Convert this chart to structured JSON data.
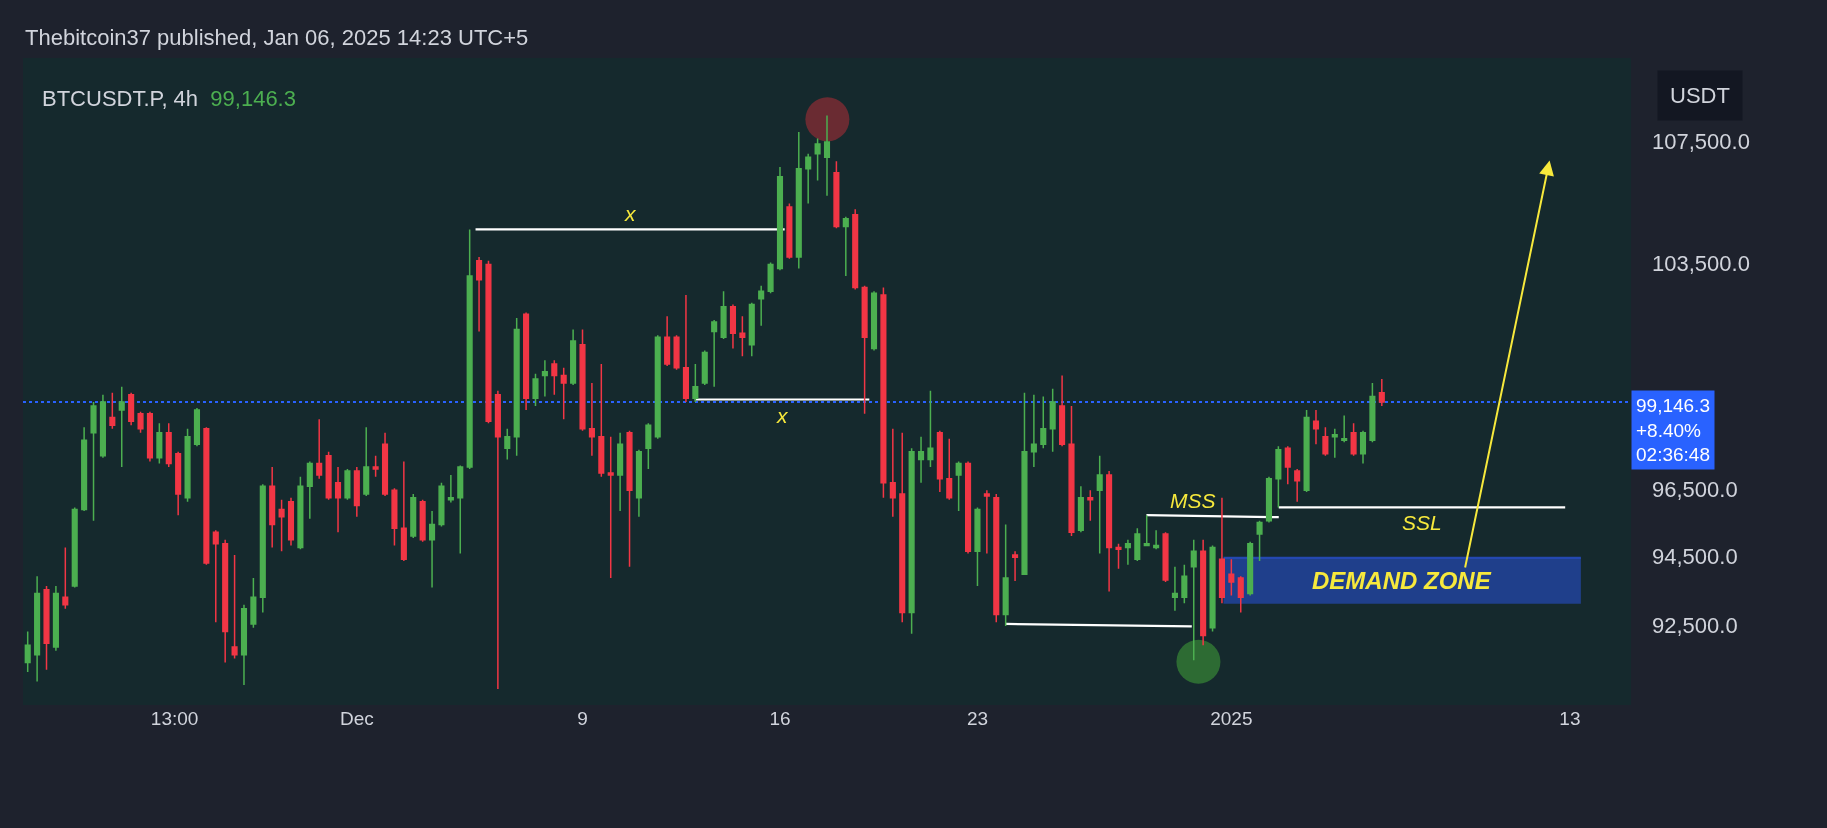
{
  "chart_data": {
    "type": "candlestick",
    "title": "BTCUSDT.P, 4h",
    "subtitle": "99,146.3",
    "ylabel": "USDT",
    "log": true,
    "annotations": [
      "Thebitcoin37 published, Jan 06, 2025 14:23 UTC+5"
    ],
    "xlim": [
      "2024-11-19T04:00",
      "2025-01-15T04:00"
    ],
    "xticks": [
      {
        "value": "2024-11-24T13:00",
        "label": "13:00"
      },
      {
        "value": "2024-12-01",
        "label": "Dec"
      },
      {
        "value": "2024-12-09",
        "label": "9"
      },
      {
        "value": "2024-12-16",
        "label": "16"
      },
      {
        "value": "2024-12-23",
        "label": "23"
      },
      {
        "value": "2025-01-01",
        "label": "2025"
      },
      {
        "value": "2025-01-13",
        "label": "13"
      }
    ],
    "ylim": [
      90240,
      110320
    ],
    "yticks": [
      {
        "value": 92500,
        "label": "92,500.0"
      },
      {
        "value": 94500,
        "label": "94,500.0"
      },
      {
        "value": 96500,
        "label": "96,500.0"
      },
      {
        "value": 103500,
        "label": "103,500.0"
      },
      {
        "value": 107500,
        "label": "107,500.0"
      }
    ],
    "ref_lines": [
      {
        "axis": "y",
        "value": 99146.3,
        "label": "99,146.3\n+8.40%\n02:36:48",
        "color": "#2962ff",
        "line_style": "dotted"
      }
    ],
    "series": [
      {
        "type": "line",
        "name": "x",
        "color": "#ffffff",
        "x": [
          "2024-12-05T05:00",
          "2024-12-16T04:00"
        ],
        "values": [
          104600,
          104600
        ]
      },
      {
        "type": "line",
        "name": "x",
        "color": "#ffffff",
        "x": [
          "2024-12-12T23:30",
          "2024-12-19T04:00"
        ],
        "values": [
          99220,
          99220
        ]
      },
      {
        "type": "line",
        "color": "#ffffff",
        "x": [
          "2024-12-24T00:15",
          "2024-12-30T14:20"
        ],
        "values": [
          92540,
          92470
        ]
      },
      {
        "type": "line",
        "name": "MSS",
        "color": "#ffffff",
        "x": [
          "2024-12-28T23:45",
          "2025-01-02T16:20"
        ],
        "values": [
          95720,
          95660
        ]
      },
      {
        "type": "line",
        "name": "SSL",
        "color": "#ffffff",
        "x": [
          "2025-01-02T16:20",
          "2025-01-12T20:00"
        ],
        "values": [
          95950,
          95950
        ]
      },
      {
        "type": "line",
        "name": "DEMAND ZONE",
        "color": "#2448b0",
        "x": [
          "2024-12-31T17:20",
          "2025-01-13T09:20"
        ],
        "values": [
          94460,
          94460
        ],
        "lower": [
          93120,
          93120
        ],
        "upper": [
          94460,
          94460
        ]
      },
      {
        "type": "scatter",
        "color": "#6a2b32",
        "x": [
          "2024-12-17T16:20"
        ],
        "values": [
          108240
        ]
      },
      {
        "type": "scatter",
        "color": "#2d6b33",
        "x": [
          "2024-12-30T20:00"
        ],
        "values": [
          91460
        ]
      }
    ],
    "x": [
      "2024-11-19T08:00",
      "2024-11-19T16:00",
      "2024-11-20T00:00",
      "2024-11-20T08:00",
      "2024-11-20T16:00",
      "2024-11-21T00:00",
      "2024-11-21T08:00",
      "2024-11-21T16:00",
      "2024-11-22T00:00",
      "2024-11-22T08:00",
      "2024-11-22T16:00",
      "2024-11-23T00:00",
      "2024-11-23T08:00",
      "2024-11-23T16:00",
      "2024-11-24T00:00",
      "2024-11-24T08:00",
      "2024-11-24T16:00",
      "2024-11-25T00:00",
      "2024-11-25T08:00",
      "2024-11-25T16:00",
      "2024-11-26T00:00",
      "2024-11-26T08:00",
      "2024-11-26T16:00",
      "2024-11-27T00:00",
      "2024-11-27T08:00",
      "2024-11-27T16:00",
      "2024-11-28T00:00",
      "2024-11-28T08:00",
      "2024-11-28T16:00",
      "2024-11-29T00:00",
      "2024-11-29T08:00",
      "2024-11-29T16:00",
      "2024-11-30T00:00",
      "2024-11-30T08:00",
      "2024-11-30T16:00",
      "2024-12-01T00:00",
      "2024-12-01T08:00",
      "2024-12-01T16:00",
      "2024-12-02T00:00",
      "2024-12-02T08:00",
      "2024-12-02T16:00",
      "2024-12-03T00:00",
      "2024-12-03T08:00",
      "2024-12-03T16:00",
      "2024-12-04T00:00",
      "2024-12-04T08:00",
      "2024-12-04T16:00",
      "2024-12-05T00:00",
      "2024-12-05T08:00",
      "2024-12-05T16:00",
      "2024-12-06T00:00",
      "2024-12-06T08:00",
      "2024-12-06T16:00",
      "2024-12-07T00:00",
      "2024-12-07T08:00",
      "2024-12-07T16:00",
      "2024-12-08T00:00",
      "2024-12-08T08:00",
      "2024-12-08T16:00",
      "2024-12-09T00:00",
      "2024-12-09T08:00",
      "2024-12-09T16:00",
      "2024-12-10T00:00",
      "2024-12-10T08:00",
      "2024-12-10T16:00",
      "2024-12-11T00:00",
      "2024-12-11T08:00",
      "2024-12-11T16:00",
      "2024-12-12T00:00",
      "2024-12-12T08:00",
      "2024-12-12T16:00",
      "2024-12-13T00:00",
      "2024-12-13T08:00",
      "2024-12-13T16:00",
      "2024-12-14T00:00",
      "2024-12-14T08:00",
      "2024-12-14T16:00",
      "2024-12-15T00:00",
      "2024-12-15T08:00",
      "2024-12-15T16:00",
      "2024-12-16T00:00",
      "2024-12-16T08:00",
      "2024-12-16T16:00",
      "2024-12-17T00:00",
      "2024-12-17T08:00",
      "2024-12-17T16:00",
      "2024-12-18T00:00",
      "2024-12-18T08:00",
      "2024-12-18T16:00",
      "2024-12-19T00:00",
      "2024-12-19T08:00",
      "2024-12-19T16:00",
      "2024-12-20T00:00",
      "2024-12-20T08:00",
      "2024-12-20T16:00",
      "2024-12-21T00:00",
      "2024-12-21T08:00",
      "2024-12-21T16:00",
      "2024-12-22T00:00",
      "2024-12-22T08:00",
      "2024-12-22T16:00",
      "2024-12-23T00:00",
      "2024-12-23T08:00",
      "2024-12-23T16:00",
      "2024-12-24T00:00",
      "2024-12-24T08:00",
      "2024-12-24T16:00",
      "2024-12-25T00:00",
      "2024-12-25T08:00",
      "2024-12-25T16:00",
      "2024-12-26T00:00",
      "2024-12-26T08:00",
      "2024-12-26T16:00",
      "2024-12-27T00:00",
      "2024-12-27T08:00",
      "2024-12-27T16:00",
      "2024-12-28T00:00",
      "2024-12-28T08:00",
      "2024-12-28T16:00",
      "2024-12-29T00:00",
      "2024-12-29T08:00",
      "2024-12-29T16:00",
      "2024-12-30T00:00",
      "2024-12-30T08:00",
      "2024-12-30T16:00",
      "2024-12-31T00:00",
      "2024-12-31T08:00",
      "2024-12-31T16:00",
      "2025-01-01T00:00",
      "2025-01-01T08:00",
      "2025-01-01T16:00",
      "2025-01-02T00:00",
      "2025-01-02T08:00",
      "2025-01-02T16:00",
      "2025-01-03T00:00",
      "2025-01-03T08:00",
      "2025-01-03T16:00",
      "2025-01-04T00:00",
      "2025-01-04T08:00",
      "2025-01-04T16:00",
      "2025-01-05T00:00",
      "2025-01-05T08:00",
      "2025-01-05T16:00",
      "2025-01-06T00:00",
      "2025-01-06T08:00"
    ],
    "ohlc": [
      [
        91440,
        92320,
        91170,
        91930
      ],
      [
        91660,
        93920,
        90900,
        93420
      ],
      [
        93530,
        93640,
        91230,
        91990
      ],
      [
        91880,
        93640,
        91770,
        93420
      ],
      [
        93310,
        94760,
        92980,
        93090
      ],
      [
        93640,
        95950,
        93590,
        95890
      ],
      [
        95890,
        98370,
        95840,
        97970
      ],
      [
        98200,
        99140,
        95550,
        99020
      ],
      [
        97500,
        99370,
        97440,
        99140
      ],
      [
        98670,
        99430,
        98320,
        98430
      ],
      [
        98900,
        99610,
        97160,
        99140
      ],
      [
        99370,
        99430,
        98430,
        98550
      ],
      [
        98780,
        98840,
        98200,
        98320
      ],
      [
        98780,
        98840,
        97330,
        97440
      ],
      [
        97440,
        98490,
        97270,
        98200
      ],
      [
        98200,
        98490,
        97160,
        97270
      ],
      [
        97560,
        97620,
        95720,
        96350
      ],
      [
        96240,
        98320,
        96120,
        98080
      ],
      [
        97850,
        98960,
        97790,
        98900
      ],
      [
        98320,
        98370,
        94260,
        94310
      ],
      [
        95210,
        95270,
        92590,
        94870
      ],
      [
        94870,
        94990,
        91440,
        92320
      ],
      [
        91880,
        94540,
        91550,
        91660
      ],
      [
        91660,
        93090,
        90800,
        92980
      ],
      [
        92540,
        93870,
        92430,
        93310
      ],
      [
        93310,
        96640,
        92870,
        96580
      ],
      [
        96580,
        97160,
        94760,
        95440
      ],
      [
        95890,
        96180,
        94650,
        95670
      ],
      [
        96120,
        96240,
        94820,
        94990
      ],
      [
        94760,
        96870,
        94710,
        96580
      ],
      [
        96580,
        97330,
        95610,
        97270
      ],
      [
        97270,
        98610,
        96810,
        96920
      ],
      [
        97500,
        97620,
        96180,
        96240
      ],
      [
        96690,
        97160,
        95210,
        96240
      ],
      [
        96240,
        97100,
        96180,
        97040
      ],
      [
        97040,
        97160,
        95670,
        96010
      ],
      [
        96350,
        98370,
        96290,
        97160
      ],
      [
        97160,
        97500,
        96870,
        97100
      ],
      [
        97850,
        98200,
        96290,
        96350
      ],
      [
        96460,
        96520,
        94820,
        95330
      ],
      [
        95330,
        97330,
        94370,
        94420
      ],
      [
        95100,
        96350,
        95040,
        96240
      ],
      [
        96120,
        96180,
        94930,
        94990
      ],
      [
        94990,
        95840,
        93590,
        95440
      ],
      [
        95440,
        96690,
        95380,
        96580
      ],
      [
        96180,
        96920,
        96100,
        96240
      ],
      [
        96240,
        97210,
        94590,
        97160
      ],
      [
        97160,
        104600,
        97100,
        103100
      ],
      [
        103590,
        103710,
        101340,
        102980
      ],
      [
        103470,
        103590,
        98490,
        98550
      ],
      [
        99370,
        99490,
        90690,
        98080
      ],
      [
        97730,
        98320,
        97390,
        98080
      ],
      [
        98080,
        101760,
        97500,
        101400
      ],
      [
        101880,
        101940,
        98900,
        99260
      ],
      [
        99260,
        100020,
        99020,
        99850
      ],
      [
        99960,
        100440,
        99310,
        100080
      ],
      [
        100320,
        100440,
        99370,
        99960
      ],
      [
        99960,
        100200,
        98610,
        99730
      ],
      [
        99730,
        101400,
        99670,
        101040
      ],
      [
        100920,
        101400,
        98260,
        98320
      ],
      [
        98320,
        99730,
        97500,
        98080
      ],
      [
        98080,
        100320,
        96870,
        96980
      ],
      [
        96980,
        98080,
        93870,
        96920
      ],
      [
        96920,
        98200,
        95840,
        97850
      ],
      [
        98200,
        98260,
        94200,
        96460
      ],
      [
        96240,
        97680,
        95670,
        97620
      ],
      [
        97730,
        98490,
        97100,
        98430
      ],
      [
        98080,
        101220,
        98020,
        101160
      ],
      [
        101160,
        101820,
        100260,
        100320
      ],
      [
        101160,
        101220,
        100140,
        100200
      ],
      [
        100200,
        102490,
        99140,
        99260
      ],
      [
        99260,
        100320,
        99140,
        99610
      ],
      [
        99730,
        100740,
        99670,
        100680
      ],
      [
        101340,
        101700,
        99610,
        101640
      ],
      [
        101160,
        102610,
        101100,
        102120
      ],
      [
        102120,
        102190,
        100800,
        101280
      ],
      [
        101280,
        101820,
        100560,
        101160
      ],
      [
        100920,
        102250,
        100560,
        102190
      ],
      [
        102370,
        102790,
        101520,
        102610
      ],
      [
        102610,
        103530,
        102550,
        103470
      ],
      [
        103340,
        106650,
        103280,
        106330
      ],
      [
        105330,
        105450,
        103650,
        103710
      ],
      [
        103710,
        107810,
        103340,
        106590
      ],
      [
        106590,
        107090,
        105450,
        106970
      ],
      [
        107090,
        107600,
        106200,
        107410
      ],
      [
        106970,
        108370,
        105700,
        107480
      ],
      [
        106460,
        106840,
        104640,
        104700
      ],
      [
        104700,
        105010,
        103100,
        104950
      ],
      [
        105080,
        105260,
        102670,
        102730
      ],
      [
        102730,
        102790,
        98780,
        101160
      ],
      [
        100800,
        102610,
        100740,
        102550
      ],
      [
        102490,
        102730,
        96240,
        96690
      ],
      [
        96690,
        98320,
        95670,
        96240
      ],
      [
        96350,
        98200,
        92590,
        92870
      ],
      [
        92870,
        97730,
        92260,
        97620
      ],
      [
        97390,
        98080,
        96690,
        97620
      ],
      [
        97390,
        99490,
        97160,
        97730
      ],
      [
        98200,
        98260,
        96410,
        96810
      ],
      [
        96810,
        98020,
        96180,
        96240
      ],
      [
        96920,
        97330,
        95840,
        97270
      ],
      [
        97270,
        97330,
        94590,
        94650
      ],
      [
        94650,
        95950,
        93640,
        95890
      ],
      [
        96350,
        96460,
        94590,
        96290
      ],
      [
        96240,
        96350,
        92590,
        92810
      ],
      [
        92810,
        95440,
        92480,
        93870
      ],
      [
        94540,
        94650,
        93780,
        94480
      ],
      [
        93980,
        99430,
        93980,
        97620
      ],
      [
        97620,
        99370,
        97160,
        97850
      ],
      [
        97850,
        99310,
        97730,
        98320
      ],
      [
        98320,
        99550,
        97620,
        99140
      ],
      [
        99020,
        99960,
        97790,
        97850
      ],
      [
        97850,
        99020,
        95100,
        95210
      ],
      [
        95270,
        96580,
        95210,
        96240
      ],
      [
        96240,
        96460,
        95550,
        96180
      ],
      [
        96460,
        97500,
        94590,
        96920
      ],
      [
        96920,
        97040,
        93480,
        94760
      ],
      [
        94760,
        94870,
        94140,
        94710
      ],
      [
        94760,
        94990,
        94260,
        94870
      ],
      [
        94420,
        95330,
        94370,
        95160
      ],
      [
        94820,
        95720,
        94820,
        94870
      ],
      [
        94760,
        95270,
        94710,
        94820
      ],
      [
        95160,
        95210,
        93750,
        93810
      ],
      [
        93310,
        94200,
        92920,
        93420
      ],
      [
        93310,
        94260,
        93140,
        93920
      ],
      [
        94200,
        94990,
        91500,
        94650
      ],
      [
        94650,
        94990,
        91930,
        92210
      ],
      [
        92430,
        94820,
        92320,
        94760
      ],
      [
        94420,
        96240,
        93140,
        93310
      ],
      [
        93980,
        94420,
        93360,
        93750
      ],
      [
        93870,
        93920,
        92870,
        93310
      ],
      [
        93420,
        94930,
        93360,
        94870
      ],
      [
        95160,
        95550,
        94370,
        95500
      ],
      [
        95550,
        96870,
        95500,
        96810
      ],
      [
        96810,
        97790,
        95950,
        97680
      ],
      [
        97730,
        97790,
        96640,
        97160
      ],
      [
        97040,
        97100,
        96120,
        96750
      ],
      [
        96460,
        98900,
        96410,
        98670
      ],
      [
        98550,
        98900,
        97850,
        98320
      ],
      [
        98080,
        98370,
        97500,
        97560
      ],
      [
        98080,
        98320,
        97440,
        98140
      ],
      [
        97970,
        98730,
        97910,
        98020
      ],
      [
        98200,
        98490,
        97500,
        97560
      ],
      [
        97560,
        98260,
        97270,
        98200
      ],
      [
        97970,
        99730,
        97910,
        99310
      ],
      [
        99430,
        99850,
        99020,
        99146.3
      ]
    ]
  }
}
